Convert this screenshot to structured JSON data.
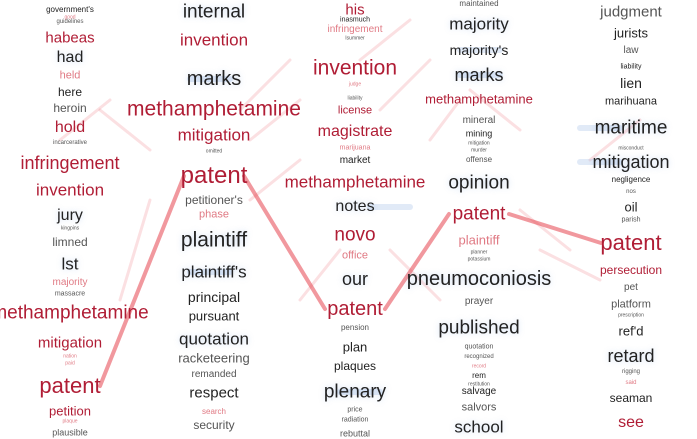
{
  "colors": {
    "red": "#b01d35",
    "pale": "#e07a84",
    "text": "#222222",
    "grey": "#555555",
    "link": "#e8545e",
    "blue": "#a9c2e8"
  },
  "columns": [
    {
      "name": "col1",
      "words": [
        {
          "t": "government's",
          "s": 8,
          "c": "text"
        },
        {
          "t": "good",
          "s": 5,
          "c": "pale"
        },
        {
          "t": "guidelines",
          "s": 6,
          "c": "grey"
        },
        {
          "t": "habeas",
          "s": 15,
          "c": "red"
        },
        {
          "t": "had",
          "s": 16,
          "c": "text"
        },
        {
          "t": "held",
          "s": 11,
          "c": "pale"
        },
        {
          "t": "here",
          "s": 12,
          "c": "text"
        },
        {
          "t": "heroin",
          "s": 12,
          "c": "grey"
        },
        {
          "t": "hold",
          "s": 16,
          "c": "red"
        },
        {
          "t": "incarcerative",
          "s": 6,
          "c": "grey"
        },
        {
          "t": "infringement",
          "s": 18,
          "c": "red"
        },
        {
          "t": "invention",
          "s": 17,
          "c": "red"
        },
        {
          "t": "jury",
          "s": 16,
          "c": "text"
        },
        {
          "t": "kingpins",
          "s": 5,
          "c": "grey"
        },
        {
          "t": "limned",
          "s": 12,
          "c": "grey"
        },
        {
          "t": "lst",
          "s": 17,
          "c": "text"
        },
        {
          "t": "majority",
          "s": 10,
          "c": "pale"
        },
        {
          "t": "massacre",
          "s": 7,
          "c": "grey"
        },
        {
          "t": "methamphetamine",
          "s": 19,
          "c": "red"
        },
        {
          "t": "mitigation",
          "s": 15,
          "c": "red"
        },
        {
          "t": "nation",
          "s": 5,
          "c": "pale"
        },
        {
          "t": "paid",
          "s": 5,
          "c": "pale"
        },
        {
          "t": "patent",
          "s": 22,
          "c": "red"
        },
        {
          "t": "petition",
          "s": 13,
          "c": "red"
        },
        {
          "t": "plaque",
          "s": 5,
          "c": "pale"
        },
        {
          "t": "plausible",
          "s": 9,
          "c": "grey"
        }
      ]
    },
    {
      "name": "col2",
      "words": [
        {
          "t": "internal",
          "s": 19,
          "c": "text"
        },
        {
          "t": "invention",
          "s": 17,
          "c": "red"
        },
        {
          "t": "marks",
          "s": 20,
          "c": "text"
        },
        {
          "t": "methamphetamine",
          "s": 21,
          "c": "red"
        },
        {
          "t": "mitigation",
          "s": 17,
          "c": "red"
        },
        {
          "t": "omitted",
          "s": 5,
          "c": "grey"
        },
        {
          "t": "patent",
          "s": 24,
          "c": "red"
        },
        {
          "t": "petitioner's",
          "s": 12,
          "c": "grey"
        },
        {
          "t": "phase",
          "s": 11,
          "c": "pale"
        },
        {
          "t": "plaintiff",
          "s": 21,
          "c": "text"
        },
        {
          "t": "plaintiff's",
          "s": 17,
          "c": "text"
        },
        {
          "t": "principal",
          "s": 14,
          "c": "text"
        },
        {
          "t": "pursuant",
          "s": 13,
          "c": "text"
        },
        {
          "t": "quotation",
          "s": 17,
          "c": "text"
        },
        {
          "t": "racketeering",
          "s": 13,
          "c": "grey"
        },
        {
          "t": "remanded",
          "s": 10,
          "c": "grey"
        },
        {
          "t": "respect",
          "s": 15,
          "c": "text"
        },
        {
          "t": "search",
          "s": 8,
          "c": "pale"
        },
        {
          "t": "security",
          "s": 12,
          "c": "grey"
        }
      ]
    },
    {
      "name": "col3",
      "words": [
        {
          "t": "his",
          "s": 15,
          "c": "red"
        },
        {
          "t": "inasmuch",
          "s": 7,
          "c": "text"
        },
        {
          "t": "infringement",
          "s": 10,
          "c": "pale"
        },
        {
          "t": "Isummer",
          "s": 5,
          "c": "grey"
        },
        {
          "t": "invention",
          "s": 21,
          "c": "red"
        },
        {
          "t": "judge",
          "s": 5,
          "c": "pale"
        },
        {
          "t": "liability",
          "s": 5,
          "c": "grey"
        },
        {
          "t": "license",
          "s": 11,
          "c": "red"
        },
        {
          "t": "magistrate",
          "s": 16,
          "c": "red"
        },
        {
          "t": "marijuana",
          "s": 7,
          "c": "pale"
        },
        {
          "t": "market",
          "s": 10,
          "c": "text"
        },
        {
          "t": "methamphetamine",
          "s": 17,
          "c": "red"
        },
        {
          "t": "notes",
          "s": 16,
          "c": "text"
        },
        {
          "t": "novo",
          "s": 19,
          "c": "red"
        },
        {
          "t": "office",
          "s": 11,
          "c": "pale"
        },
        {
          "t": "our",
          "s": 18,
          "c": "text"
        },
        {
          "t": "patent",
          "s": 20,
          "c": "red"
        },
        {
          "t": "pension",
          "s": 8,
          "c": "grey"
        },
        {
          "t": "plan",
          "s": 13,
          "c": "text"
        },
        {
          "t": "plaques",
          "s": 12,
          "c": "text"
        },
        {
          "t": "plenary",
          "s": 19,
          "c": "text"
        },
        {
          "t": "price",
          "s": 7,
          "c": "grey"
        },
        {
          "t": "radiation",
          "s": 7,
          "c": "grey"
        },
        {
          "t": "rebuttal",
          "s": 9,
          "c": "grey"
        }
      ]
    },
    {
      "name": "col4",
      "words": [
        {
          "t": "maintained",
          "s": 8,
          "c": "grey"
        },
        {
          "t": "majority",
          "s": 17,
          "c": "text"
        },
        {
          "t": "majority's",
          "s": 14,
          "c": "text"
        },
        {
          "t": "marks",
          "s": 18,
          "c": "text"
        },
        {
          "t": "methamphetamine",
          "s": 13,
          "c": "red"
        },
        {
          "t": "mineral",
          "s": 10,
          "c": "grey"
        },
        {
          "t": "mining",
          "s": 9,
          "c": "text"
        },
        {
          "t": "mitigation",
          "s": 5,
          "c": "grey"
        },
        {
          "t": "murder",
          "s": 5,
          "c": "grey"
        },
        {
          "t": "offense",
          "s": 8,
          "c": "grey"
        },
        {
          "t": "opinion",
          "s": 19,
          "c": "text"
        },
        {
          "t": "patent",
          "s": 19,
          "c": "red"
        },
        {
          "t": "plaintiff",
          "s": 13,
          "c": "pale"
        },
        {
          "t": "planner",
          "s": 5,
          "c": "grey"
        },
        {
          "t": "potassium",
          "s": 5,
          "c": "grey"
        },
        {
          "t": "pneumoconiosis",
          "s": 20,
          "c": "text"
        },
        {
          "t": "prayer",
          "s": 10,
          "c": "grey"
        },
        {
          "t": "published",
          "s": 19,
          "c": "text"
        },
        {
          "t": "quotation",
          "s": 7,
          "c": "grey"
        },
        {
          "t": "recognized",
          "s": 6,
          "c": "grey"
        },
        {
          "t": "record",
          "s": 5,
          "c": "pale"
        },
        {
          "t": "rem",
          "s": 8,
          "c": "text"
        },
        {
          "t": "restitution",
          "s": 5,
          "c": "grey"
        },
        {
          "t": "salvage",
          "s": 10,
          "c": "text"
        },
        {
          "t": "salvors",
          "s": 11,
          "c": "grey"
        },
        {
          "t": "school",
          "s": 17,
          "c": "text"
        }
      ]
    },
    {
      "name": "col5",
      "words": [
        {
          "t": "judgment",
          "s": 15,
          "c": "grey"
        },
        {
          "t": "jurists",
          "s": 13,
          "c": "text"
        },
        {
          "t": "law",
          "s": 10,
          "c": "grey"
        },
        {
          "t": "liability",
          "s": 7,
          "c": "text"
        },
        {
          "t": "lien",
          "s": 14,
          "c": "text"
        },
        {
          "t": "marihuana",
          "s": 11,
          "c": "text"
        },
        {
          "t": "maritime",
          "s": 19,
          "c": "text"
        },
        {
          "t": "misconduct",
          "s": 5,
          "c": "grey"
        },
        {
          "t": "mitigation",
          "s": 18,
          "c": "text"
        },
        {
          "t": "negligence",
          "s": 8,
          "c": "text"
        },
        {
          "t": "nos",
          "s": 6,
          "c": "grey"
        },
        {
          "t": "oil",
          "s": 13,
          "c": "text"
        },
        {
          "t": "parish",
          "s": 7,
          "c": "grey"
        },
        {
          "t": "patent",
          "s": 22,
          "c": "red"
        },
        {
          "t": "persecution",
          "s": 12,
          "c": "red"
        },
        {
          "t": "pet",
          "s": 10,
          "c": "grey"
        },
        {
          "t": "platform",
          "s": 11,
          "c": "grey"
        },
        {
          "t": "prescription",
          "s": 5,
          "c": "grey"
        },
        {
          "t": "ref'd",
          "s": 13,
          "c": "text"
        },
        {
          "t": "retard",
          "s": 18,
          "c": "text"
        },
        {
          "t": "rigging",
          "s": 6,
          "c": "grey"
        },
        {
          "t": "said",
          "s": 6,
          "c": "pale"
        },
        {
          "t": "seaman",
          "s": 12,
          "c": "text"
        },
        {
          "t": "see",
          "s": 16,
          "c": "red"
        }
      ]
    }
  ],
  "highlight_path": {
    "word": "patent",
    "note": "red ribbon links each column's 'patent'"
  }
}
